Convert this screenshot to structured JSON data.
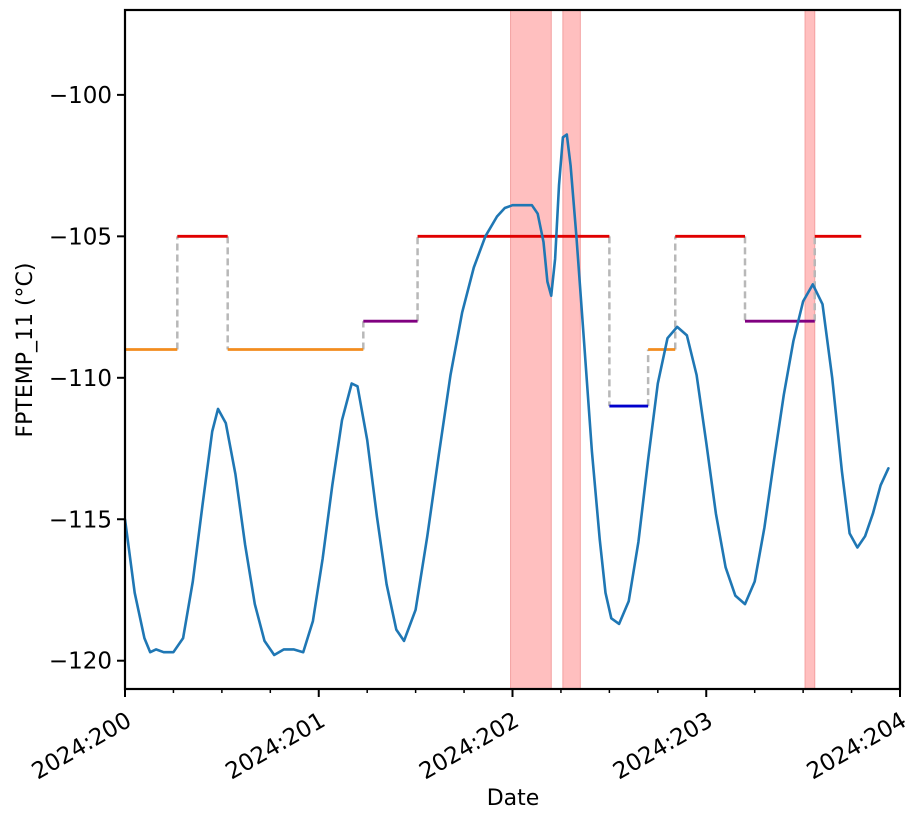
{
  "chart_data": {
    "type": "line",
    "title": "",
    "xlabel": "Date",
    "ylabel": "FPTEMP_11 (°C)",
    "xlim": [
      200.0,
      204.0
    ],
    "ylim": [
      -121.0,
      -97.0
    ],
    "x_ticks": [
      {
        "value": 200,
        "label": "2024:200"
      },
      {
        "value": 201,
        "label": "2024:201"
      },
      {
        "value": 202,
        "label": "2024:202"
      },
      {
        "value": 203,
        "label": "2024:203"
      },
      {
        "value": 204,
        "label": "2024:204"
      }
    ],
    "y_ticks": [
      {
        "value": -100,
        "label": "−100"
      },
      {
        "value": -105,
        "label": "−105"
      },
      {
        "value": -110,
        "label": "−110"
      },
      {
        "value": -115,
        "label": "−115"
      },
      {
        "value": -120,
        "label": "−120"
      }
    ],
    "minor_x_ticks": [
      200.25,
      200.5,
      200.75,
      201.25,
      201.5,
      201.75,
      202.25,
      202.5,
      202.75,
      203.25,
      203.5,
      203.75
    ],
    "grid": false,
    "shaded_regions": [
      {
        "x0": 201.99,
        "x1": 202.2,
        "color": "#ffbfbf"
      },
      {
        "x0": 202.26,
        "x1": 202.35,
        "color": "#ffbfbf"
      },
      {
        "x0": 203.51,
        "x1": 203.56,
        "color": "#ffbfbf"
      }
    ],
    "limit_steps": [
      {
        "x0": 200.0,
        "x1": 200.27,
        "y": -109,
        "color": "#f28c1e"
      },
      {
        "x0": 200.27,
        "x1": 200.53,
        "y": -105,
        "color": "#e00000"
      },
      {
        "x0": 200.53,
        "x1": 201.23,
        "y": -109,
        "color": "#f28c1e"
      },
      {
        "x0": 201.23,
        "x1": 201.51,
        "y": -108,
        "color": "#800080"
      },
      {
        "x0": 201.51,
        "x1": 202.5,
        "y": -105,
        "color": "#e00000"
      },
      {
        "x0": 202.5,
        "x1": 202.7,
        "y": -111,
        "color": "#0000cc"
      },
      {
        "x0": 202.7,
        "x1": 202.84,
        "y": -109,
        "color": "#f28c1e"
      },
      {
        "x0": 202.84,
        "x1": 203.2,
        "y": -105,
        "color": "#e00000"
      },
      {
        "x0": 203.2,
        "x1": 203.56,
        "y": -108,
        "color": "#800080"
      },
      {
        "x0": 203.56,
        "x1": 203.8,
        "y": -105,
        "color": "#e00000"
      }
    ],
    "series": [
      {
        "color": "#1f77b4",
        "points": [
          [
            200.0,
            -115.0
          ],
          [
            200.05,
            -117.6
          ],
          [
            200.1,
            -119.2
          ],
          [
            200.13,
            -119.7
          ],
          [
            200.16,
            -119.6
          ],
          [
            200.2,
            -119.7
          ],
          [
            200.25,
            -119.7
          ],
          [
            200.3,
            -119.2
          ],
          [
            200.35,
            -117.2
          ],
          [
            200.4,
            -114.5
          ],
          [
            200.45,
            -111.9
          ],
          [
            200.48,
            -111.1
          ],
          [
            200.52,
            -111.6
          ],
          [
            200.57,
            -113.4
          ],
          [
            200.62,
            -115.9
          ],
          [
            200.67,
            -118.0
          ],
          [
            200.72,
            -119.3
          ],
          [
            200.77,
            -119.8
          ],
          [
            200.82,
            -119.6
          ],
          [
            200.87,
            -119.6
          ],
          [
            200.92,
            -119.7
          ],
          [
            200.97,
            -118.6
          ],
          [
            201.02,
            -116.4
          ],
          [
            201.07,
            -113.8
          ],
          [
            201.12,
            -111.5
          ],
          [
            201.17,
            -110.2
          ],
          [
            201.2,
            -110.3
          ],
          [
            201.25,
            -112.2
          ],
          [
            201.3,
            -114.9
          ],
          [
            201.35,
            -117.3
          ],
          [
            201.4,
            -118.9
          ],
          [
            201.44,
            -119.3
          ],
          [
            201.5,
            -118.2
          ],
          [
            201.56,
            -115.6
          ],
          [
            201.62,
            -112.7
          ],
          [
            201.68,
            -109.9
          ],
          [
            201.74,
            -107.7
          ],
          [
            201.8,
            -106.1
          ],
          [
            201.86,
            -105.0
          ],
          [
            201.92,
            -104.3
          ],
          [
            201.96,
            -104.0
          ],
          [
            202.0,
            -103.9
          ],
          [
            202.06,
            -103.9
          ],
          [
            202.1,
            -103.9
          ],
          [
            202.13,
            -104.2
          ],
          [
            202.16,
            -105.2
          ],
          [
            202.18,
            -106.6
          ],
          [
            202.2,
            -107.1
          ],
          [
            202.22,
            -105.8
          ],
          [
            202.24,
            -103.2
          ],
          [
            202.26,
            -101.5
          ],
          [
            202.28,
            -101.4
          ],
          [
            202.3,
            -102.5
          ],
          [
            202.33,
            -105.0
          ],
          [
            202.37,
            -108.8
          ],
          [
            202.41,
            -112.6
          ],
          [
            202.45,
            -115.7
          ],
          [
            202.48,
            -117.6
          ],
          [
            202.51,
            -118.5
          ],
          [
            202.55,
            -118.7
          ],
          [
            202.6,
            -117.9
          ],
          [
            202.65,
            -115.8
          ],
          [
            202.7,
            -112.9
          ],
          [
            202.75,
            -110.2
          ],
          [
            202.8,
            -108.6
          ],
          [
            202.85,
            -108.2
          ],
          [
            202.9,
            -108.5
          ],
          [
            202.95,
            -109.9
          ],
          [
            203.0,
            -112.3
          ],
          [
            203.05,
            -114.8
          ],
          [
            203.1,
            -116.7
          ],
          [
            203.15,
            -117.7
          ],
          [
            203.2,
            -118.0
          ],
          [
            203.25,
            -117.2
          ],
          [
            203.3,
            -115.3
          ],
          [
            203.35,
            -112.9
          ],
          [
            203.4,
            -110.6
          ],
          [
            203.45,
            -108.7
          ],
          [
            203.5,
            -107.3
          ],
          [
            203.55,
            -106.7
          ],
          [
            203.6,
            -107.4
          ],
          [
            203.65,
            -110.0
          ],
          [
            203.7,
            -113.3
          ],
          [
            203.74,
            -115.5
          ],
          [
            203.78,
            -116.0
          ],
          [
            203.82,
            -115.6
          ],
          [
            203.86,
            -114.8
          ],
          [
            203.9,
            -113.8
          ],
          [
            203.94,
            -113.2
          ]
        ]
      }
    ]
  }
}
